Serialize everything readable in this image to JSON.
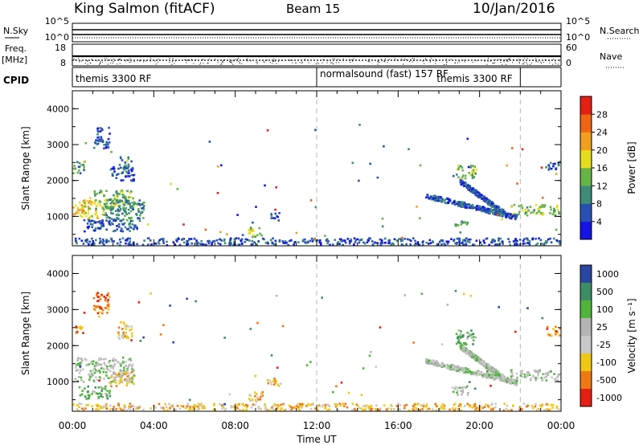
{
  "header": {
    "station": "King Salmon (fitACF)",
    "beam": "Beam 15",
    "date": "10/Jan/2016"
  },
  "panel_labels": {
    "nsky": "N.Sky",
    "nsearch": "N.Search",
    "freq_line1": "Freq.",
    "freq_line2": "[MHz]",
    "nave": "Nave",
    "cpid": "CPID"
  },
  "cpid_labels": [
    {
      "text": "themis 3300 RF",
      "start_hour": 0
    },
    {
      "text": "normalsound (fast) 157 RF",
      "start_hour": 12
    },
    {
      "text": "themis 3300 RF",
      "start_hour": 22
    }
  ],
  "colorbars": {
    "power": {
      "label": "Power [dB]",
      "ticks": [
        "4",
        "8",
        "12",
        "16",
        "20",
        "24",
        "28"
      ],
      "colors": [
        "#1414e6",
        "#2850b4",
        "#3c8c78",
        "#64b446",
        "#e6dc1e",
        "#f0a01e",
        "#f06414",
        "#e61e14"
      ]
    },
    "velocity": {
      "label": "Velocity [m s⁻¹]",
      "ticks": [
        "1000",
        "500",
        "100",
        "25",
        "-25",
        "-100",
        "-500",
        "-1000"
      ],
      "colors": [
        "#2846a0",
        "#3c8c64",
        "#50b43c",
        "#b4b4b4",
        "#c8c8c8",
        "#f0c814",
        "#f07814",
        "#e61e14"
      ]
    }
  },
  "chart_data": [
    {
      "type": "line",
      "title": "N.Sky / N.Search",
      "left_ticks": [
        "10^5",
        "10^0"
      ],
      "right_ticks": [
        "10^5",
        "10^0"
      ],
      "x_range_hours": [
        0,
        24
      ]
    },
    {
      "type": "line",
      "title": "Freq. / Nave",
      "left_ticks": [
        "18",
        "8"
      ],
      "right_ticks": [
        "60",
        "0"
      ],
      "x_range_hours": [
        0,
        24
      ]
    },
    {
      "type": "heatmap",
      "quantity": "Power",
      "ylabel": "Slant Range [km]",
      "ylim": [
        180,
        4500
      ],
      "y_ticks": [
        "1000",
        "2000",
        "3000",
        "4000"
      ],
      "x_range_hours": [
        0,
        24
      ],
      "clusters": [
        {
          "t0": 0.3,
          "t1": 1.5,
          "r0": 950,
          "r1": 1550,
          "level": 4
        },
        {
          "t0": 0.0,
          "t1": 0.5,
          "r0": 1000,
          "r1": 1350,
          "level": 5
        },
        {
          "t0": 1.0,
          "t1": 3.0,
          "r0": 1200,
          "r1": 1750,
          "level": 3
        },
        {
          "t0": 1.5,
          "t1": 3.5,
          "r0": 900,
          "r1": 1500,
          "level": 2
        },
        {
          "t0": 0.5,
          "t1": 3.2,
          "r0": 600,
          "r1": 950,
          "level": 1
        },
        {
          "t0": 0.0,
          "t1": 0.6,
          "r0": 2200,
          "r1": 2600,
          "level": 2
        },
        {
          "t0": 1.0,
          "t1": 1.8,
          "r0": 2900,
          "r1": 3500,
          "level": 1
        },
        {
          "t0": 2.2,
          "t1": 2.9,
          "r0": 2200,
          "r1": 2700,
          "level": 2
        },
        {
          "t0": 1.8,
          "t1": 3.0,
          "r0": 2000,
          "r1": 2400,
          "level": 1
        },
        {
          "t0": 8.6,
          "t1": 9.3,
          "r0": 450,
          "r1": 750,
          "level": 3
        },
        {
          "t0": 9.5,
          "t1": 10.2,
          "r0": 900,
          "r1": 1150,
          "level": 1
        },
        {
          "t0": 18.6,
          "t1": 19.4,
          "r0": 750,
          "r1": 950,
          "level": 2
        },
        {
          "t0": 18.8,
          "t1": 19.8,
          "r0": 2050,
          "r1": 2450,
          "level": 3
        },
        {
          "t0": 23.2,
          "t1": 23.9,
          "r0": 2300,
          "r1": 2550,
          "level": 1
        },
        {
          "t0": 21.5,
          "t1": 24.0,
          "r0": 1050,
          "r1": 1350,
          "level": 3
        }
      ],
      "streaks": [
        {
          "t0": 17.3,
          "t1": 21.8,
          "r0": 1600,
          "r1": 1000,
          "level": 1
        },
        {
          "t0": 19.0,
          "t1": 21.2,
          "r0": 2000,
          "r1": 1100,
          "level": 1
        }
      ],
      "ground_band": {
        "t0": 0.0,
        "t1": 24.0,
        "r0": 200,
        "r1": 420,
        "level": 1
      }
    },
    {
      "type": "heatmap",
      "quantity": "Velocity",
      "ylabel": "Slant Range [km]",
      "xlabel": "Time UT",
      "ylim": [
        180,
        4500
      ],
      "y_ticks": [
        "1000",
        "2000",
        "3000",
        "4000"
      ],
      "x_ticks": [
        "00:00",
        "04:00",
        "08:00",
        "12:00",
        "16:00",
        "20:00",
        "00:00"
      ],
      "x_tick_hours": [
        0,
        4,
        8,
        12,
        16,
        20,
        24
      ],
      "x_range_hours": [
        0,
        24
      ],
      "clusters": [
        {
          "t0": 0.0,
          "t1": 3.0,
          "r0": 1000,
          "r1": 1700,
          "level": 3
        },
        {
          "t0": 0.3,
          "t1": 1.8,
          "r0": 550,
          "r1": 900,
          "level": 2
        },
        {
          "t0": 1.8,
          "t1": 3.0,
          "r0": 900,
          "r1": 1300,
          "level": 5
        },
        {
          "t0": 0.0,
          "t1": 0.5,
          "r0": 2300,
          "r1": 2600,
          "level": 6
        },
        {
          "t0": 1.0,
          "t1": 1.8,
          "r0": 2900,
          "r1": 3500,
          "level": 6
        },
        {
          "t0": 2.2,
          "t1": 2.9,
          "r0": 2200,
          "r1": 2700,
          "level": 5
        },
        {
          "t0": 8.6,
          "t1": 9.3,
          "r0": 450,
          "r1": 750,
          "level": 5
        },
        {
          "t0": 9.5,
          "t1": 10.2,
          "r0": 900,
          "r1": 1150,
          "level": 5
        },
        {
          "t0": 18.6,
          "t1": 19.4,
          "r0": 650,
          "r1": 900,
          "level": 3
        },
        {
          "t0": 18.8,
          "t1": 19.8,
          "r0": 2050,
          "r1": 2450,
          "level": 2
        },
        {
          "t0": 23.2,
          "t1": 23.9,
          "r0": 2300,
          "r1": 2550,
          "level": 6
        },
        {
          "t0": 21.5,
          "t1": 24.0,
          "r0": 1050,
          "r1": 1350,
          "level": 3
        }
      ],
      "streaks": [
        {
          "t0": 17.3,
          "t1": 21.8,
          "r0": 1600,
          "r1": 1000,
          "level": 3
        },
        {
          "t0": 19.0,
          "t1": 21.2,
          "r0": 2000,
          "r1": 1100,
          "level": 3
        }
      ],
      "ground_band": {
        "t0": 0.0,
        "t1": 24.0,
        "r0": 200,
        "r1": 420,
        "level": 5
      }
    }
  ]
}
